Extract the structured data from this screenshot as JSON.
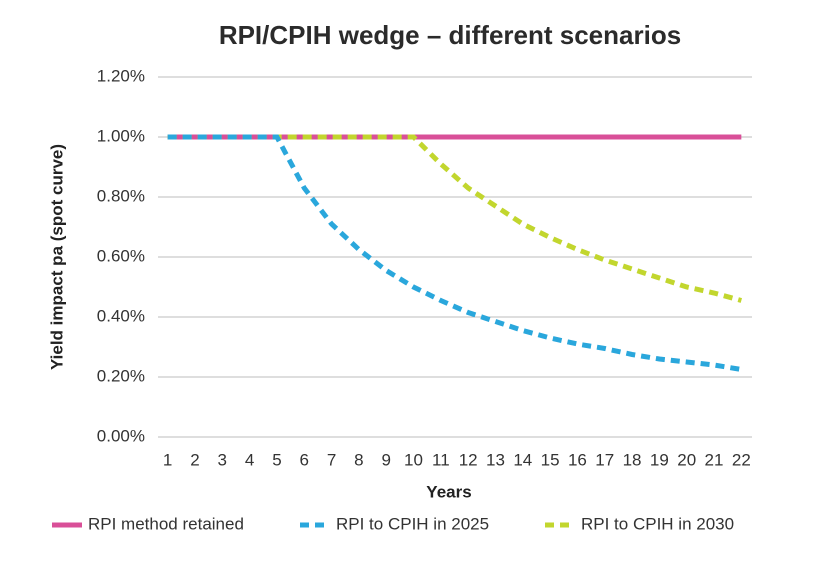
{
  "chart_data": {
    "type": "line",
    "title": "RPI/CPIH wedge – different scenarios",
    "y_label": "Yield impact pa (spot curve)",
    "x_label": "Years",
    "categories": [
      "1",
      "2",
      "3",
      "4",
      "5",
      "6",
      "7",
      "8",
      "9",
      "10",
      "11",
      "12",
      "13",
      "14",
      "15",
      "16",
      "17",
      "18",
      "19",
      "20",
      "21",
      "22"
    ],
    "series": [
      {
        "name": "RPI method retained",
        "color": "#d94f98",
        "style": "solid",
        "values": [
          1,
          1,
          1,
          1,
          1,
          1,
          1,
          1,
          1,
          1,
          1,
          1,
          1,
          1,
          1,
          1,
          1,
          1,
          1,
          1,
          1,
          1
        ]
      },
      {
        "name": "RPI to CPIH in 2025",
        "color": "#2aa7dc",
        "style": "dashed",
        "values": [
          1,
          1,
          1,
          1,
          1,
          0.83,
          0.71,
          0.625,
          0.555,
          0.5,
          0.455,
          0.415,
          0.385,
          0.355,
          0.33,
          0.31,
          0.295,
          0.275,
          0.26,
          0.25,
          0.24,
          0.225
        ]
      },
      {
        "name": "RPI to CPIH in 2030",
        "color": "#c2d62e",
        "style": "dashed",
        "values": [
          1,
          1,
          1,
          1,
          1,
          1,
          1,
          1,
          1,
          1,
          0.91,
          0.83,
          0.77,
          0.71,
          0.665,
          0.625,
          0.59,
          0.56,
          0.53,
          0.5,
          0.48,
          0.455
        ]
      }
    ],
    "draw_order": [
      0,
      2,
      1
    ],
    "ylim": [
      0,
      1.2
    ],
    "yticks": [
      {
        "value": 0,
        "label": "0.00%"
      },
      {
        "value": 0.2,
        "label": "0.20%"
      },
      {
        "value": 0.4,
        "label": "0.40%"
      },
      {
        "value": 0.6,
        "label": "0.60%"
      },
      {
        "value": 0.8,
        "label": "0.80%"
      },
      {
        "value": 1,
        "label": "1.00%"
      },
      {
        "value": 1.2,
        "label": "1.20%"
      }
    ],
    "grid": true,
    "legend": "bottom"
  }
}
